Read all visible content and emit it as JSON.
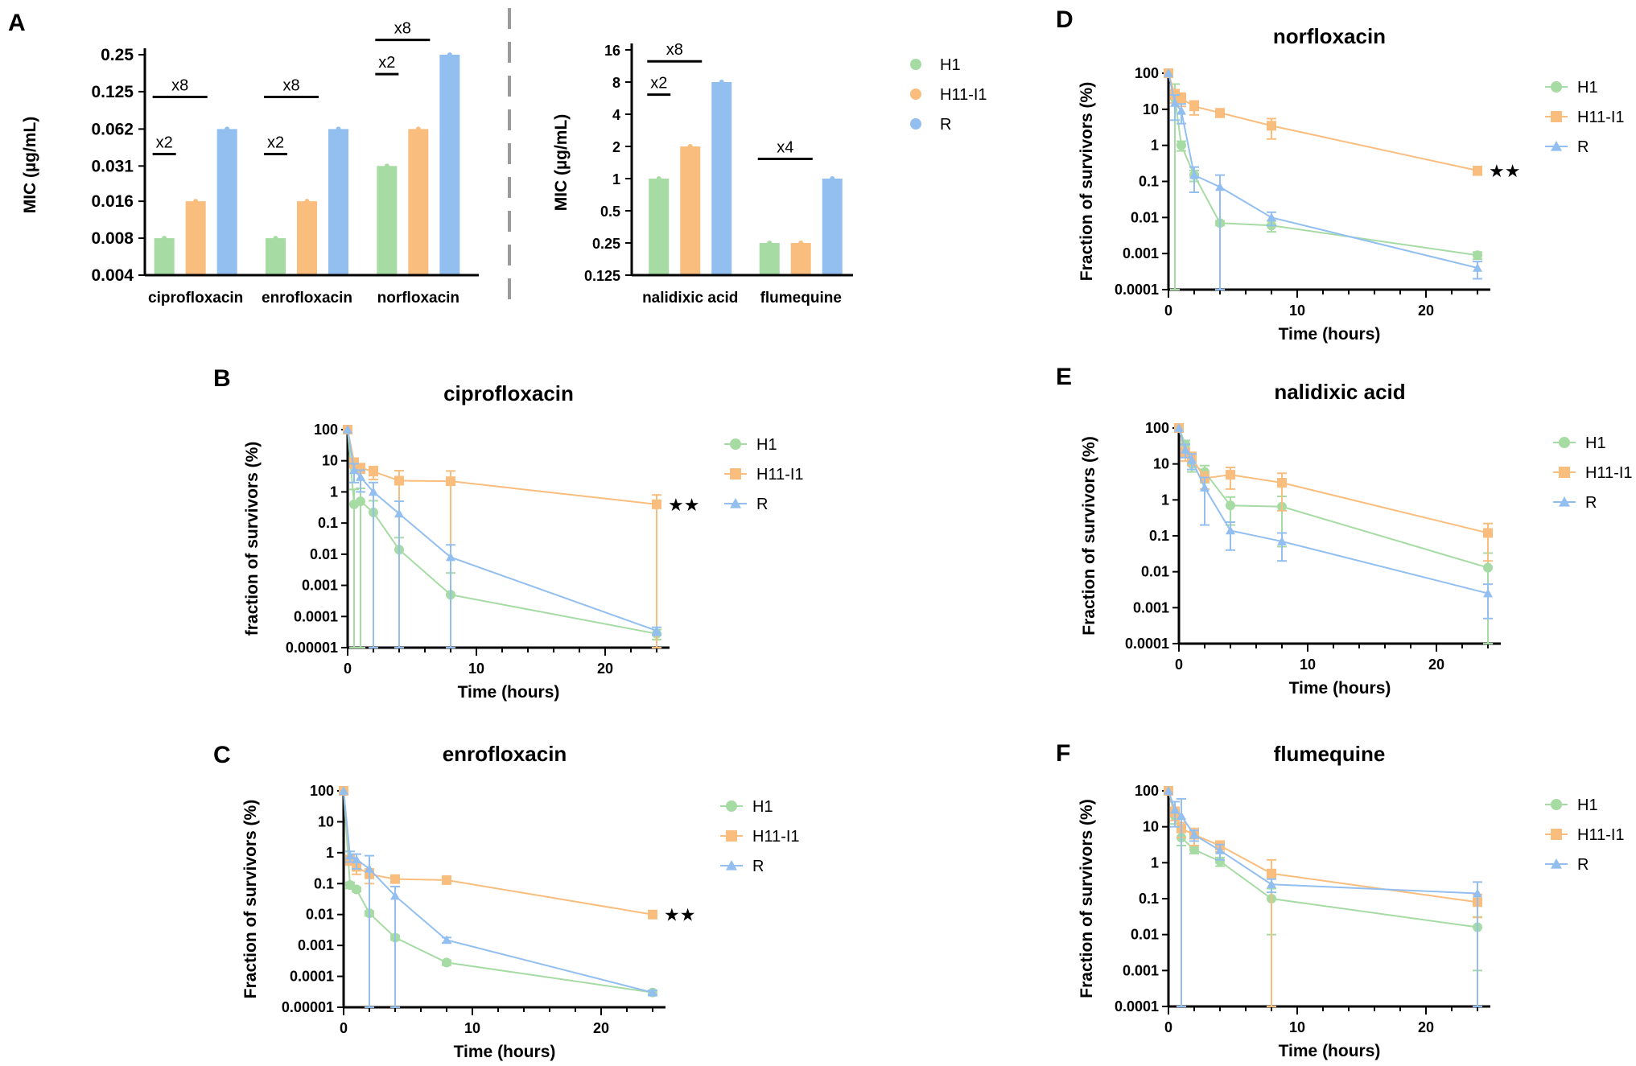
{
  "colors": {
    "H1": "#a6dba4",
    "H11-I1": "#f9bd7d",
    "R": "#93bff0"
  },
  "legend": [
    "H1",
    "H11-I1",
    "R"
  ],
  "panels": {
    "A": "A",
    "B": "B",
    "C": "C",
    "D": "D",
    "E": "E",
    "F": "F"
  },
  "chart_data": [
    {
      "id": "A1",
      "panel": "A",
      "type": "bar",
      "ylabel": "MIC (µg/mL)",
      "yscale": "log2",
      "ylim": [
        0.004,
        0.25
      ],
      "yticks": [
        "0.25",
        "0.125",
        "0.062",
        "0.031",
        "0.016",
        "0.008",
        "0.004"
      ],
      "categories": [
        "ciprofloxacin",
        "enrofloxacin",
        "norfloxacin"
      ],
      "series": [
        {
          "name": "H1",
          "values": [
            0.008,
            0.008,
            0.031
          ]
        },
        {
          "name": "H11-I1",
          "values": [
            0.016,
            0.016,
            0.062
          ]
        },
        {
          "name": "R",
          "values": [
            0.062,
            0.062,
            0.25
          ]
        }
      ],
      "annotations": [
        "x2",
        "x8",
        "x2",
        "x8",
        "x2",
        "x8"
      ]
    },
    {
      "id": "A2",
      "panel": "A",
      "type": "bar",
      "ylabel": "MIC (µg/mL)",
      "yscale": "log2",
      "ylim": [
        0.125,
        16
      ],
      "yticks": [
        "16",
        "8",
        "4",
        "2",
        "1",
        "0.5",
        "0.25",
        "0.125"
      ],
      "categories": [
        "nalidixic acid",
        "flumequine"
      ],
      "series": [
        {
          "name": "H1",
          "values": [
            1,
            0.25
          ]
        },
        {
          "name": "H11-I1",
          "values": [
            2,
            0.25
          ]
        },
        {
          "name": "R",
          "values": [
            8,
            1
          ]
        }
      ],
      "annotations": [
        "x2",
        "x8",
        "x4"
      ]
    },
    {
      "id": "B",
      "panel": "B",
      "type": "line",
      "title": "ciprofloxacin",
      "xlabel": "Time (hours)",
      "ylabel": "fraction of survivors (%)",
      "xlim": [
        0,
        25
      ],
      "xticks": [
        "0",
        "10",
        "20"
      ],
      "yscale": "log10",
      "ylim": [
        1e-05,
        100
      ],
      "yticks": [
        "100",
        "10",
        "1",
        "0.1",
        "0.01",
        "0.001",
        "0.0001",
        "0.00001"
      ],
      "series": [
        {
          "name": "H1",
          "x": [
            0,
            0.5,
            1,
            2,
            4,
            8,
            24
          ],
          "y": [
            100,
            0.4,
            0.5,
            0.22,
            0.014,
            0.0005,
            2.8e-05
          ],
          "err": [
            0,
            0.8,
            0.8,
            0.3,
            0.02,
            0.002,
            1e-05
          ]
        },
        {
          "name": "H11-I1",
          "x": [
            0,
            0.5,
            1,
            2,
            4,
            8,
            24
          ],
          "y": [
            100,
            9,
            6,
            4.5,
            2.3,
            2.2,
            0.4
          ],
          "err": [
            0,
            3,
            2,
            2,
            2.5,
            2.5,
            0.4
          ]
        },
        {
          "name": "R",
          "x": [
            0,
            0.5,
            1,
            2,
            4,
            8,
            24
          ],
          "y": [
            100,
            5,
            3,
            1,
            0.2,
            0.008,
            3.5e-05
          ],
          "err": [
            0,
            3,
            2,
            1,
            0.3,
            0.012,
            1e-05
          ]
        }
      ],
      "annotation": "★★"
    },
    {
      "id": "C",
      "panel": "C",
      "type": "line",
      "title": "enrofloxacin",
      "xlabel": "Time (hours)",
      "ylabel": "Fraction of survivors (%)",
      "xlim": [
        0,
        25
      ],
      "xticks": [
        "0",
        "10",
        "20"
      ],
      "yscale": "log10",
      "ylim": [
        1e-05,
        100
      ],
      "yticks": [
        "100",
        "10",
        "1",
        "0.1",
        "0.01",
        "0.001",
        "0.0001",
        "0.00001"
      ],
      "series": [
        {
          "name": "H1",
          "x": [
            0,
            0.5,
            1,
            2,
            4,
            8,
            24
          ],
          "y": [
            100,
            0.09,
            0.065,
            0.011,
            0.0018,
            0.00028,
            3e-05
          ],
          "err": [
            0,
            0.02,
            0.01,
            0.002,
            0.0003,
            5e-05,
            5e-06
          ]
        },
        {
          "name": "H11-I1",
          "x": [
            0,
            0.5,
            1,
            2,
            4,
            8,
            24
          ],
          "y": [
            100,
            0.6,
            0.35,
            0.2,
            0.14,
            0.13,
            0.01
          ],
          "err": [
            0,
            0.2,
            0.15,
            0.1,
            0.03,
            0.02,
            0.002
          ]
        },
        {
          "name": "R",
          "x": [
            0,
            0.5,
            1,
            2,
            4,
            8,
            24
          ],
          "y": [
            100,
            0.8,
            0.6,
            0.3,
            0.04,
            0.0015,
            3e-05
          ],
          "err": [
            0,
            0.3,
            0.3,
            0.5,
            0.04,
            0.0003,
            5e-06
          ]
        }
      ],
      "annotation": "★★"
    },
    {
      "id": "D",
      "panel": "D",
      "type": "line",
      "title": "norfloxacin",
      "xlabel": "Time (hours)",
      "ylabel": "Fraction of survivors (%)",
      "xlim": [
        0,
        25
      ],
      "xticks": [
        "0",
        "10",
        "20"
      ],
      "yscale": "log10",
      "ylim": [
        0.0001,
        100
      ],
      "yticks": [
        "100",
        "10",
        "1",
        "0.1",
        "0.01",
        "0.001",
        "0.0001"
      ],
      "series": [
        {
          "name": "H1",
          "x": [
            0,
            0.5,
            1,
            2,
            4,
            8,
            24
          ],
          "y": [
            100,
            20,
            1,
            0.15,
            0.007,
            0.006,
            0.0009
          ],
          "err": [
            0,
            30,
            0.3,
            0.05,
            0.001,
            0.002,
            0.0002
          ]
        },
        {
          "name": "H11-I1",
          "x": [
            0,
            0.5,
            1,
            2,
            4,
            8,
            24
          ],
          "y": [
            100,
            25,
            20,
            12,
            8,
            3.5,
            0.2
          ],
          "err": [
            0,
            10,
            8,
            5,
            2,
            2,
            0.05
          ]
        },
        {
          "name": "R",
          "x": [
            0,
            0.5,
            1,
            2,
            4,
            8,
            24
          ],
          "y": [
            100,
            15,
            9,
            0.15,
            0.07,
            0.01,
            0.0004
          ],
          "err": [
            0,
            10,
            5,
            0.1,
            0.08,
            0.004,
            0.0002
          ]
        }
      ],
      "annotation": "★★"
    },
    {
      "id": "E",
      "panel": "E",
      "type": "line",
      "title": "nalidixic acid",
      "xlabel": "Time (hours)",
      "ylabel": "Fraction of survivors (%)",
      "xlim": [
        0,
        25
      ],
      "xticks": [
        "0",
        "10",
        "20"
      ],
      "yscale": "log10",
      "ylim": [
        0.0001,
        100
      ],
      "yticks": [
        "100",
        "10",
        "1",
        "0.1",
        "0.01",
        "0.001",
        "0.0001"
      ],
      "series": [
        {
          "name": "H1",
          "x": [
            0,
            0.5,
            1,
            2,
            4,
            8,
            24
          ],
          "y": [
            100,
            35,
            10,
            6,
            0.7,
            0.65,
            0.013
          ],
          "err": [
            0,
            10,
            4,
            3,
            0.5,
            0.6,
            0.02
          ]
        },
        {
          "name": "H11-I1",
          "x": [
            0,
            0.5,
            1,
            2,
            4,
            8,
            24
          ],
          "y": [
            100,
            20,
            15,
            4,
            5,
            3,
            0.12
          ],
          "err": [
            0,
            8,
            6,
            2,
            3,
            2.5,
            0.1
          ]
        },
        {
          "name": "R",
          "x": [
            0,
            0.5,
            1,
            2,
            4,
            8,
            24
          ],
          "y": [
            100,
            25,
            13,
            2.2,
            0.14,
            0.07,
            0.0025
          ],
          "err": [
            0,
            10,
            6,
            2,
            0.1,
            0.05,
            0.002
          ]
        }
      ]
    },
    {
      "id": "F",
      "panel": "F",
      "type": "line",
      "title": "flumequine",
      "xlabel": "Time (hours)",
      "ylabel": "Fraction of survivors (%)",
      "xlim": [
        0,
        25
      ],
      "xticks": [
        "0",
        "10",
        "20"
      ],
      "yscale": "log10",
      "ylim": [
        0.0001,
        100
      ],
      "yticks": [
        "100",
        "10",
        "1",
        "0.1",
        "0.01",
        "0.001",
        "0.0001"
      ],
      "series": [
        {
          "name": "H1",
          "x": [
            0,
            0.5,
            1,
            2,
            4,
            8,
            24
          ],
          "y": [
            100,
            20,
            5,
            2.3,
            1.1,
            0.1,
            0.016
          ],
          "err": [
            0,
            8,
            2,
            0.5,
            0.3,
            0.09,
            0.015
          ]
        },
        {
          "name": "H11-I1",
          "x": [
            0,
            0.5,
            1,
            2,
            4,
            8,
            24
          ],
          "y": [
            100,
            25,
            9,
            6,
            3,
            0.5,
            0.08
          ],
          "err": [
            0,
            10,
            4,
            3,
            1,
            0.7,
            0.05
          ]
        },
        {
          "name": "R",
          "x": [
            0,
            0.5,
            1,
            2,
            4,
            8,
            24
          ],
          "y": [
            100,
            30,
            20,
            6,
            2.2,
            0.25,
            0.14
          ],
          "err": [
            0,
            20,
            40,
            2,
            1,
            0.1,
            0.15
          ]
        }
      ]
    }
  ]
}
